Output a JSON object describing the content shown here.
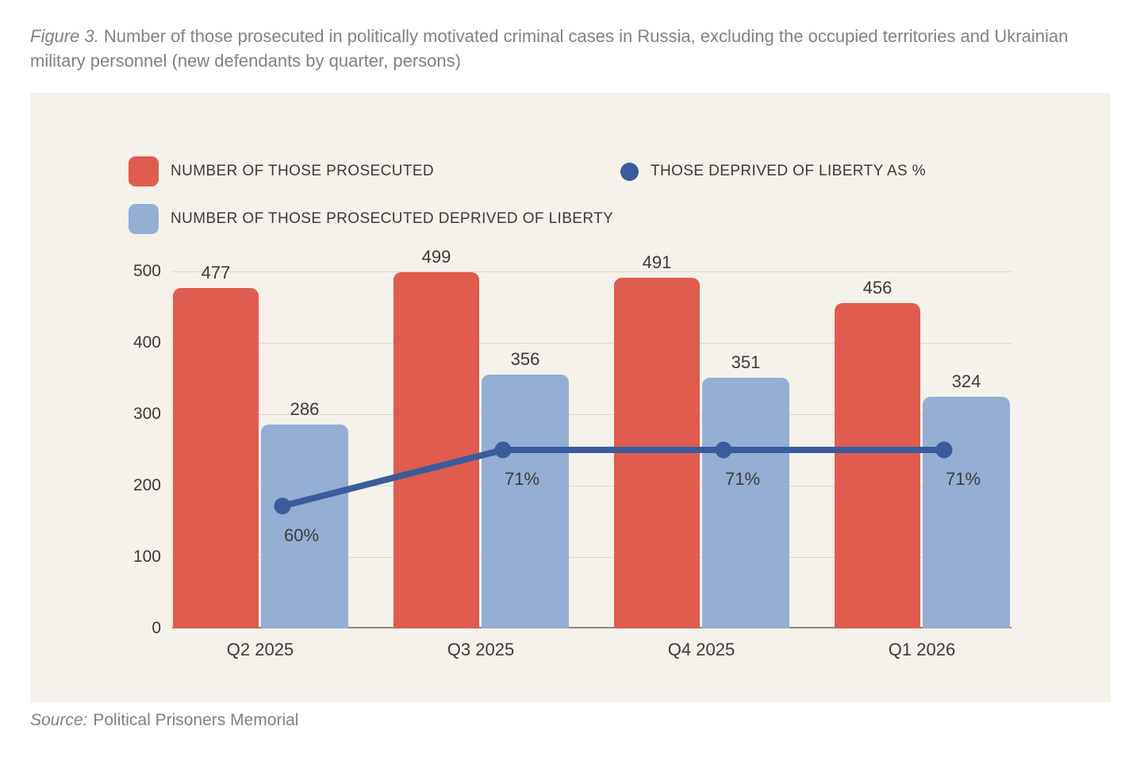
{
  "figure": {
    "title_prefix": "Figure 3.",
    "title_rest": "Number of those prosecuted in politically motivated criminal cases in Russia, excluding the occupied territories and Ukrainian military personnel (new defendants by quarter, persons)",
    "source_label": "Source:",
    "source_value": "Political Prisoners Memorial"
  },
  "colors": {
    "page_bg": "#ffffff",
    "panel_bg": "#f4f2ea",
    "grid": "#d9d6ce",
    "axis_line": "#8c897e",
    "text_dark": "#3b3a36",
    "text_gray": "#83817a",
    "bar_red": "#df5c4e",
    "bar_blue": "#94afd3",
    "line_blue": "#3a5b9c"
  },
  "chart_data": {
    "type": "bar",
    "subtype": "grouped bars with percent line overlay",
    "categories": [
      "Q2 2025",
      "Q3 2025",
      "Q4 2025",
      "Q1 2026"
    ],
    "series": [
      {
        "name": "NUMBER OF THOSE PROSECUTED",
        "type": "bar",
        "color": "#df5c4e",
        "values": [
          477,
          499,
          491,
          456
        ]
      },
      {
        "name": "NUMBER OF THOSE PROSECUTED DEPRIVED OF LIBERTY",
        "type": "bar",
        "color": "#94afd3",
        "values": [
          286,
          356,
          351,
          324
        ]
      },
      {
        "name": "THOSE DEPRIVED OF LIBERTY AS %",
        "type": "line",
        "color": "#3a5b9c",
        "values": [
          60,
          71,
          71,
          71
        ],
        "value_labels": [
          "60%",
          "71%",
          "71%",
          "71%"
        ]
      }
    ],
    "y_axis": {
      "min": 0,
      "max": 500,
      "ticks": [
        0,
        100,
        200,
        300,
        400,
        500
      ]
    },
    "secondary_axis": {
      "min": 36,
      "max": 106,
      "visible": false
    },
    "grid": true,
    "legend_position": "top-left, two rows inside plot panel"
  }
}
